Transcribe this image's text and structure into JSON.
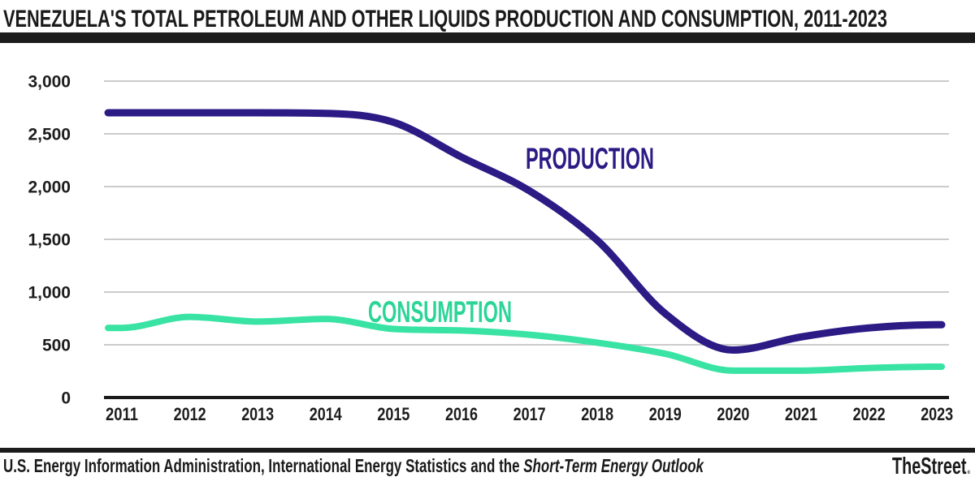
{
  "header": {
    "title": "VENEZUELA'S TOTAL PETROLEUM AND OTHER LIQUIDS PRODUCTION AND CONSUMPTION, 2011-2023"
  },
  "footer": {
    "source_plain": "U.S. Energy Information Administration, International Energy Statistics and the ",
    "source_italic": "Short-Term Energy Outlook",
    "brand": "TheStreet",
    "brand_period": "."
  },
  "chart_data": {
    "type": "line",
    "title": "VENEZUELA'S TOTAL PETROLEUM AND OTHER LIQUIDS PRODUCTION AND CONSUMPTION, 2011-2023",
    "x": [
      2011,
      2012,
      2013,
      2014,
      2015,
      2016,
      2017,
      2018,
      2019,
      2020,
      2021,
      2022,
      2023
    ],
    "series": [
      {
        "name": "PRODUCTION",
        "color": "#2c1a85",
        "label_color": "#2c1a85",
        "values": [
          2700,
          2700,
          2700,
          2695,
          2610,
          2280,
          1960,
          1490,
          795,
          450,
          575,
          660,
          690
        ]
      },
      {
        "name": "CONSUMPTION",
        "color": "#39e3a4",
        "label_color": "#2bd596",
        "values": [
          660,
          765,
          720,
          745,
          650,
          635,
          595,
          520,
          415,
          255,
          255,
          280,
          292
        ]
      }
    ],
    "xlabel": "",
    "ylabel": "",
    "ylim": [
      0,
      3000
    ],
    "yticks": [
      0,
      500,
      1000,
      1500,
      2000,
      2500,
      3000
    ],
    "ytick_labels": [
      "0",
      "500",
      "1,000",
      "1,500",
      "2,000",
      "2,500",
      "3,000"
    ],
    "xtick_labels": [
      "2011",
      "2012",
      "2013",
      "2014",
      "2015",
      "2016",
      "2017",
      "2018",
      "2019",
      "2020",
      "2021",
      "2022",
      "2023"
    ],
    "grid": true,
    "legend_position": "inline-labels",
    "grid_color": "#cbcbcb",
    "axis_color": "#1a1a1a",
    "tick_label_color": "#1d1d1d",
    "title_color": "#1a1a1a"
  }
}
